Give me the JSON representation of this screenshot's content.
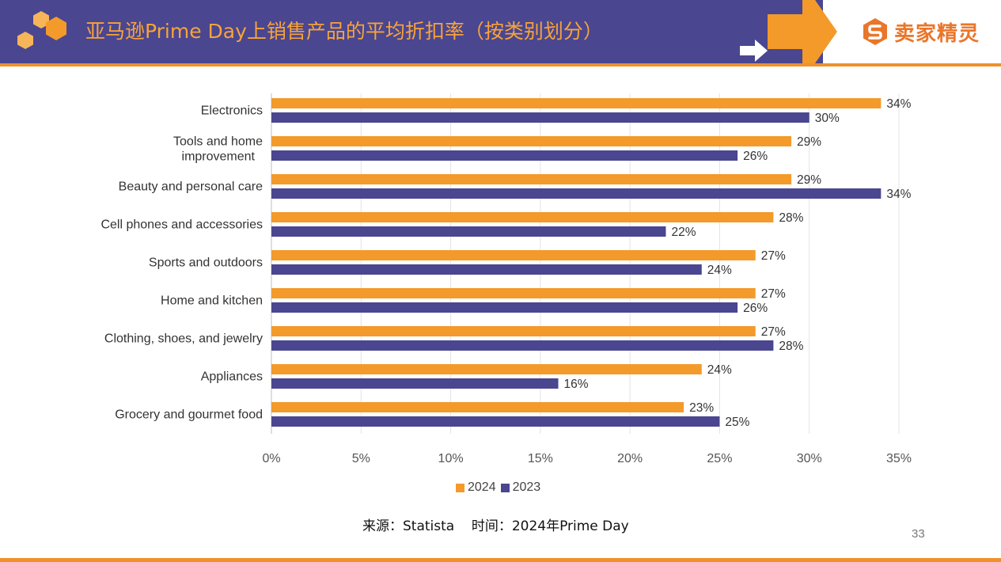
{
  "header": {
    "title": "亚马逊Prime Day上销售产品的平均折扣率（按类别划分）",
    "logo_text": "卖家精灵",
    "logo_icon": "s-logo-icon",
    "colors": {
      "bar": "#4a4690",
      "accent": "#f0912a",
      "title": "#f7a33a"
    }
  },
  "chart_data": {
    "type": "bar",
    "orientation": "horizontal",
    "categories": [
      "Electronics",
      "Tools and home improvement",
      "Beauty and personal care",
      "Cell phones and accessories",
      "Sports and outdoors",
      "Home and kitchen",
      "Clothing, shoes, and jewelry",
      "Appliances",
      "Grocery and gourmet food"
    ],
    "series": [
      {
        "name": "2024",
        "color": "#f39a2b",
        "values": [
          34,
          29,
          29,
          28,
          27,
          27,
          27,
          24,
          23
        ]
      },
      {
        "name": "2023",
        "color": "#4a4690",
        "values": [
          30,
          26,
          34,
          22,
          24,
          26,
          28,
          16,
          25
        ]
      }
    ],
    "xlim": [
      0,
      35
    ],
    "xticks": [
      "0%",
      "5%",
      "10%",
      "15%",
      "20%",
      "25%",
      "30%",
      "35%"
    ],
    "value_suffix": "%",
    "grid": true,
    "legend": "bottom-center"
  },
  "footer": {
    "source": "来源：Statista    时间：2024年Prime Day",
    "page_number": "33"
  }
}
